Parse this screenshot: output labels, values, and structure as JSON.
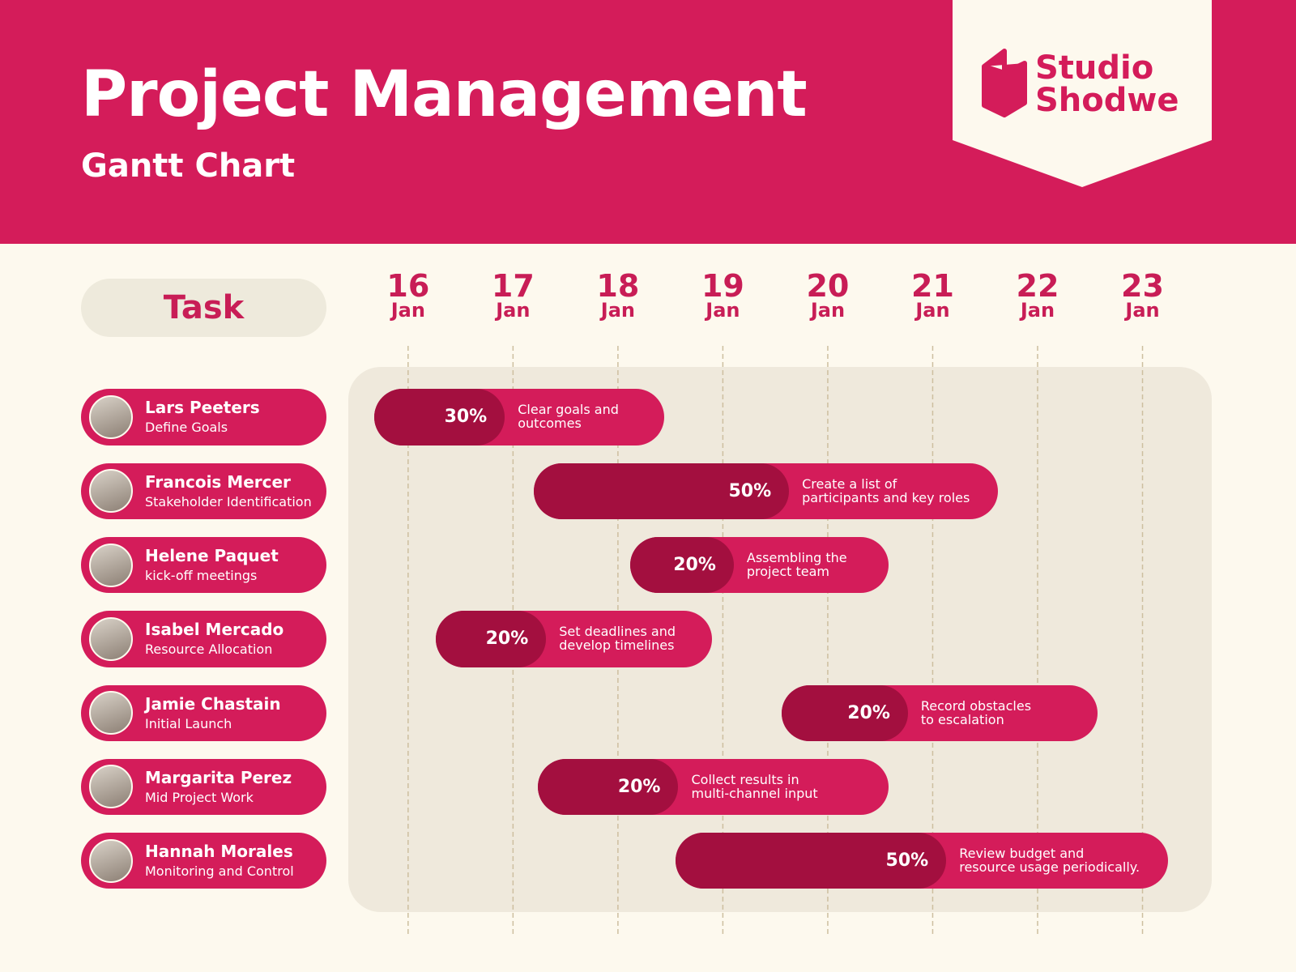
{
  "chart_data": {
    "type": "gantt",
    "title": "Project Management",
    "subtitle": "Gantt Chart",
    "brand": [
      "Studio",
      "Shodwe"
    ],
    "task_header": "Task",
    "xlim": [
      15.43,
      23.66
    ],
    "xticks": [
      {
        "value": 16,
        "label": "16 Jan"
      },
      {
        "value": 17,
        "label": "17 Jan"
      },
      {
        "value": 18,
        "label": "18 Jan"
      },
      {
        "value": 19,
        "label": "19 Jan"
      },
      {
        "value": 20,
        "label": "20 Jan"
      },
      {
        "value": 21,
        "label": "21 Jan"
      },
      {
        "value": 22,
        "label": "22 Jan"
      },
      {
        "value": 23,
        "label": "23 Jan"
      }
    ],
    "people": [
      "Lars Peeters",
      "Francois Mercer",
      "Helene Paquet",
      "Isabel Mercado",
      "Jamie Chastain",
      "Margarita Perez",
      "Hannah Morales"
    ],
    "tasks": [
      "Define Goals",
      "Stakeholder Identification",
      "kick-off meetings",
      "Resource Allocation",
      "Initial Launch",
      "Mid Project Work",
      "Monitoring and Control"
    ],
    "starts": [
      15.68,
      17.2,
      18.12,
      16.26,
      19.56,
      17.24,
      18.55
    ],
    "ends": [
      18.44,
      21.62,
      20.58,
      18.9,
      22.57,
      20.58,
      23.24
    ],
    "values": [
      30,
      50,
      20,
      20,
      20,
      20,
      50
    ],
    "value_labels": [
      "30%",
      "50%",
      "20%",
      "20%",
      "20%",
      "20%",
      "50%"
    ],
    "descriptions": [
      "Clear goals and\noutcomes",
      "Create a list of\nparticipants and key roles",
      "Assembling the\nproject team",
      "Set deadlines and\ndevelop timelines",
      "Record obstacles\nto escalation",
      "Collect results in\nmulti-channel input",
      "Review budget and\nresource usage periodically."
    ],
    "color": "#d41c5a",
    "progress_color": "#a30f3f",
    "grid": true
  }
}
